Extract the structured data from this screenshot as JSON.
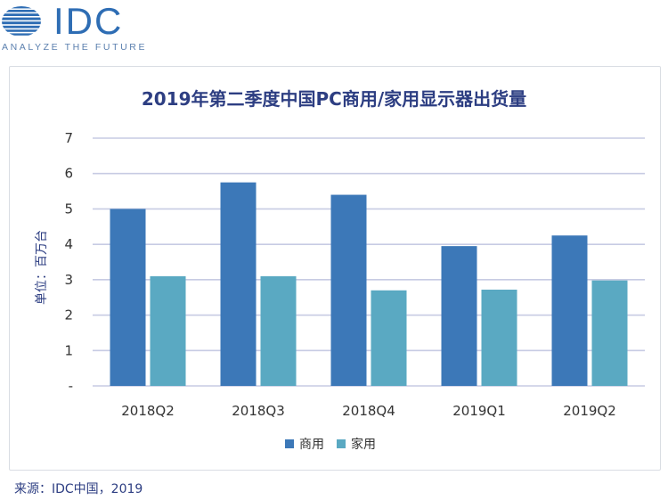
{
  "logo": {
    "text": "IDC",
    "tagline": "ANALYZE THE FUTURE"
  },
  "title": "2019年第二季度中国PC商用/家用显示器出货量",
  "source": "来源：IDC中国，2019",
  "colors": {
    "commercial": "#3c78b8",
    "home": "#5aa9c2",
    "title": "#2d3e82",
    "grid": "#c7cbe3"
  },
  "chart_data": {
    "type": "bar",
    "title": "2019年第二季度中国PC商用/家用显示器出货量",
    "xlabel": "",
    "ylabel": "单位：百万台",
    "categories": [
      "2018Q2",
      "2018Q3",
      "2018Q4",
      "2019Q1",
      "2019Q2"
    ],
    "series": [
      {
        "name": "商用",
        "color": "#3c78b8",
        "values": [
          5.0,
          5.75,
          5.4,
          3.95,
          4.25
        ]
      },
      {
        "name": "家用",
        "color": "#5aa9c2",
        "values": [
          3.1,
          3.1,
          2.7,
          2.72,
          2.98
        ]
      }
    ],
    "ylim": [
      0,
      7
    ],
    "yticks": [
      "-",
      "1",
      "2",
      "3",
      "4",
      "5",
      "6",
      "7"
    ],
    "grid": true,
    "legend_position": "bottom"
  }
}
